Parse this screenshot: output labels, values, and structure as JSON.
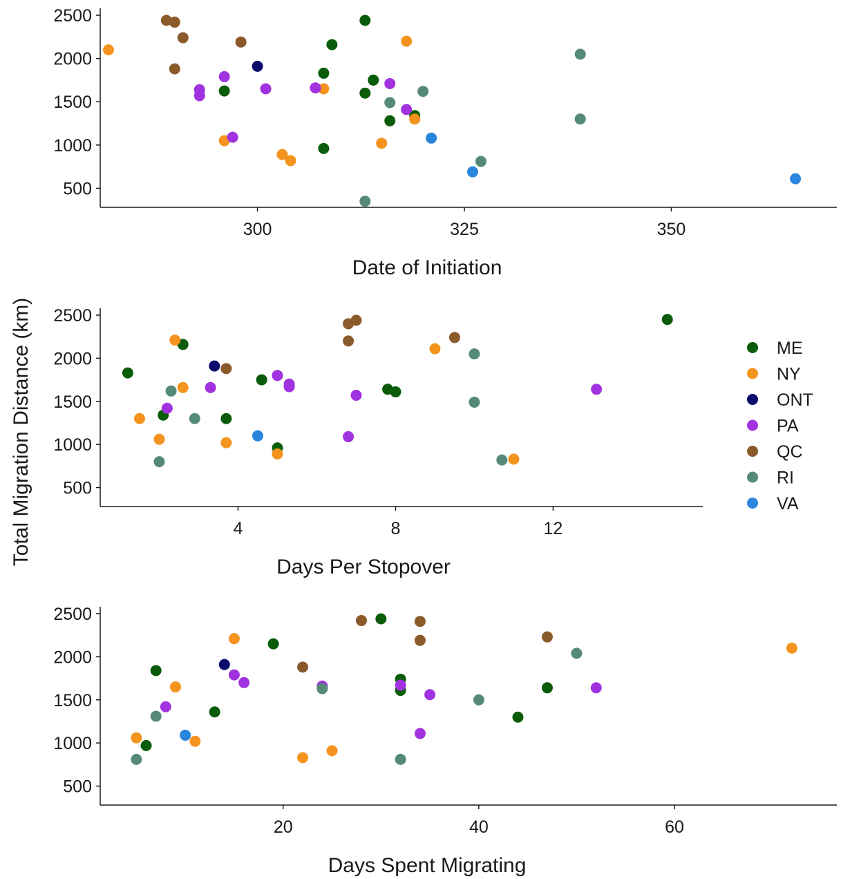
{
  "ylabel": "Total Migration Distance (km)",
  "legend": {
    "placement": "right",
    "items": [
      {
        "label": "ME",
        "color": "#0a5c0a"
      },
      {
        "label": "NY",
        "color": "#f4931e"
      },
      {
        "label": "ONT",
        "color": "#0b0b6e"
      },
      {
        "label": "PA",
        "color": "#a132e0"
      },
      {
        "label": "QC",
        "color": "#8b5a2b"
      },
      {
        "label": "RI",
        "color": "#568a78"
      },
      {
        "label": "VA",
        "color": "#2a86dc"
      }
    ]
  },
  "chart_data": [
    {
      "type": "scatter",
      "xlabel": "Date of Initiation",
      "ylabel": "Total Migration Distance (km)",
      "xlim": [
        281,
        370
      ],
      "ylim": [
        280,
        2580
      ],
      "xticks": [
        300,
        325,
        350
      ],
      "yticks": [
        500,
        1000,
        1500,
        2000,
        2500
      ],
      "grid": false,
      "series": [
        {
          "name": "ME",
          "points": [
            [
              296,
              1625
            ],
            [
              308,
              1830
            ],
            [
              309,
              2160
            ],
            [
              313,
              2440
            ],
            [
              313,
              1600
            ],
            [
              314,
              1750
            ],
            [
              316,
              1280
            ],
            [
              319,
              1340
            ],
            [
              308,
              960
            ]
          ]
        },
        {
          "name": "NY",
          "points": [
            [
              282,
              2100
            ],
            [
              296,
              1050
            ],
            [
              303,
              890
            ],
            [
              304,
              820
            ],
            [
              308,
              1650
            ],
            [
              315,
              1020
            ],
            [
              318,
              2200
            ],
            [
              319,
              1300
            ]
          ]
        },
        {
          "name": "ONT",
          "points": [
            [
              300,
              1910
            ]
          ]
        },
        {
          "name": "PA",
          "points": [
            [
              293,
              1640
            ],
            [
              293,
              1570
            ],
            [
              296,
              1790
            ],
            [
              297,
              1090
            ],
            [
              301,
              1650
            ],
            [
              307,
              1660
            ],
            [
              316,
              1710
            ],
            [
              318,
              1410
            ]
          ]
        },
        {
          "name": "QC",
          "points": [
            [
              289,
              2440
            ],
            [
              290,
              2420
            ],
            [
              290,
              1880
            ],
            [
              291,
              2240
            ],
            [
              298,
              2190
            ]
          ]
        },
        {
          "name": "RI",
          "points": [
            [
              313,
              350
            ],
            [
              316,
              1490
            ],
            [
              320,
              1620
            ],
            [
              327,
              810
            ],
            [
              339,
              2050
            ],
            [
              339,
              1300
            ]
          ]
        },
        {
          "name": "VA",
          "points": [
            [
              321,
              1080
            ],
            [
              326,
              690
            ],
            [
              365,
              610
            ]
          ]
        }
      ]
    },
    {
      "type": "scatter",
      "xlabel": "Days Per Stopover",
      "ylabel": "Total Migration Distance (km)",
      "xlim": [
        0.5,
        15.8
      ],
      "ylim": [
        280,
        2580
      ],
      "xticks": [
        4,
        8,
        12
      ],
      "yticks": [
        500,
        1000,
        1500,
        2000,
        2500
      ],
      "grid": false,
      "series": [
        {
          "name": "ME",
          "points": [
            [
              1.2,
              1830
            ],
            [
              2.6,
              2160
            ],
            [
              2.1,
              1340
            ],
            [
              3.7,
              1300
            ],
            [
              4.6,
              1750
            ],
            [
              5.0,
              960
            ],
            [
              7.8,
              1640
            ],
            [
              8.0,
              1610
            ],
            [
              14.9,
              2450
            ]
          ]
        },
        {
          "name": "NY",
          "points": [
            [
              1.5,
              1300
            ],
            [
              2.0,
              1060
            ],
            [
              2.4,
              2210
            ],
            [
              2.6,
              1660
            ],
            [
              3.7,
              1020
            ],
            [
              5.0,
              890
            ],
            [
              9.0,
              2110
            ],
            [
              11.0,
              830
            ]
          ]
        },
        {
          "name": "ONT",
          "points": [
            [
              3.4,
              1910
            ]
          ]
        },
        {
          "name": "PA",
          "points": [
            [
              2.2,
              1420
            ],
            [
              3.3,
              1660
            ],
            [
              5.0,
              1800
            ],
            [
              5.3,
              1700
            ],
            [
              5.3,
              1670
            ],
            [
              6.8,
              1090
            ],
            [
              7.0,
              1570
            ],
            [
              13.1,
              1640
            ]
          ]
        },
        {
          "name": "QC",
          "points": [
            [
              3.7,
              1880
            ],
            [
              6.8,
              2400
            ],
            [
              7.0,
              2440
            ],
            [
              6.8,
              2200
            ],
            [
              9.5,
              2240
            ]
          ]
        },
        {
          "name": "RI",
          "points": [
            [
              2.0,
              800
            ],
            [
              2.3,
              1620
            ],
            [
              2.9,
              1300
            ],
            [
              10.0,
              2050
            ],
            [
              10.0,
              1490
            ],
            [
              10.7,
              820
            ]
          ]
        },
        {
          "name": "VA",
          "points": [
            [
              4.5,
              1100
            ]
          ]
        }
      ]
    },
    {
      "type": "scatter",
      "xlabel": "Days Spent Migrating",
      "ylabel": "Total Migration Distance (km)",
      "xlim": [
        1.3,
        76.6
      ],
      "ylim": [
        280,
        2580
      ],
      "xticks": [
        20,
        40,
        60
      ],
      "yticks": [
        500,
        1000,
        1500,
        2000,
        2500
      ],
      "grid": false,
      "series": [
        {
          "name": "ME",
          "points": [
            [
              6,
              970
            ],
            [
              7,
              1840
            ],
            [
              13,
              1360
            ],
            [
              19,
              2150
            ],
            [
              30,
              2440
            ],
            [
              32,
              1740
            ],
            [
              32,
              1610
            ],
            [
              44,
              1300
            ],
            [
              47,
              1640
            ]
          ]
        },
        {
          "name": "NY",
          "points": [
            [
              5,
              1060
            ],
            [
              9,
              1650
            ],
            [
              11,
              1020
            ],
            [
              15,
              2210
            ],
            [
              22,
              830
            ],
            [
              25,
              910
            ],
            [
              72,
              2100
            ]
          ]
        },
        {
          "name": "ONT",
          "points": [
            [
              14,
              1910
            ]
          ]
        },
        {
          "name": "PA",
          "points": [
            [
              8,
              1420
            ],
            [
              15,
              1790
            ],
            [
              16,
              1700
            ],
            [
              24,
              1660
            ],
            [
              32,
              1670
            ],
            [
              34,
              1110
            ],
            [
              35,
              1560
            ],
            [
              52,
              1640
            ]
          ]
        },
        {
          "name": "QC",
          "points": [
            [
              22,
              1880
            ],
            [
              28,
              2420
            ],
            [
              34,
              2410
            ],
            [
              34,
              2190
            ],
            [
              47,
              2230
            ]
          ]
        },
        {
          "name": "RI",
          "points": [
            [
              5,
              810
            ],
            [
              7,
              1310
            ],
            [
              24,
              1630
            ],
            [
              32,
              810
            ],
            [
              40,
              1500
            ],
            [
              50,
              2040
            ]
          ]
        },
        {
          "name": "VA",
          "points": [
            [
              10,
              1090
            ]
          ]
        }
      ]
    }
  ]
}
